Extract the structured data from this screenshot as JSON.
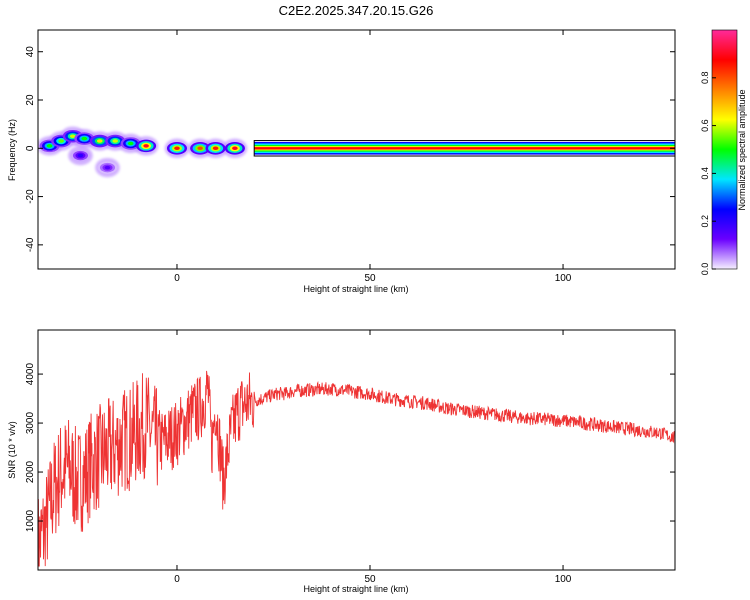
{
  "title": "C2E2.2025.347.20.15.G26",
  "chart_data": [
    {
      "type": "heatmap",
      "xlabel": "Height of straight line (km)",
      "ylabel": "Frequency (Hz)",
      "xlim": [
        -36,
        129
      ],
      "ylim": [
        -50,
        49
      ],
      "xticks": [
        0,
        50,
        100
      ],
      "yticks": [
        40,
        20,
        0,
        -20,
        -40
      ],
      "grid": false,
      "colorbar": {
        "label": "Normalized spectral amplitude",
        "range": [
          0,
          1
        ],
        "ticks": [
          "0.0",
          "0.2",
          "0.4",
          "0.6",
          "0.8"
        ],
        "tick_values": [
          0,
          0.2,
          0.4,
          0.6,
          0.8
        ],
        "colors": [
          "#f6f0ff",
          "#6a00ff",
          "#0000ff",
          "#00e6ff",
          "#00ff00",
          "#ffff00",
          "#ff8000",
          "#ff0000",
          "#ff2a9a"
        ]
      },
      "band": {
        "x_start": 20,
        "x_end": 129,
        "frequency": 0,
        "amplitude": 1.0
      },
      "blobs": [
        {
          "x": -33,
          "f": 1,
          "amp": 0.5
        },
        {
          "x": -30,
          "f": 3,
          "amp": 0.55
        },
        {
          "x": -27,
          "f": 5,
          "amp": 0.6
        },
        {
          "x": -24,
          "f": 4,
          "amp": 0.5
        },
        {
          "x": -20,
          "f": 3,
          "amp": 0.65
        },
        {
          "x": -16,
          "f": 3,
          "amp": 0.6
        },
        {
          "x": -12,
          "f": 2,
          "amp": 0.5
        },
        {
          "x": -8,
          "f": 1,
          "amp": 0.9
        },
        {
          "x": 0,
          "f": 0,
          "amp": 0.85
        },
        {
          "x": 6,
          "f": 0,
          "amp": 0.8
        },
        {
          "x": 10,
          "f": 0,
          "amp": 0.85
        },
        {
          "x": 15,
          "f": 0,
          "amp": 0.9
        },
        {
          "x": -18,
          "f": -8,
          "amp": 0.15
        },
        {
          "x": -25,
          "f": -3,
          "amp": 0.2
        }
      ]
    },
    {
      "type": "line",
      "xlabel": "Height of straight line (km)",
      "ylabel": "SNR (10 * v/v)",
      "xlim": [
        -36,
        129
      ],
      "ylim": [
        0,
        4900
      ],
      "xticks": [
        0,
        50,
        100
      ],
      "yticks": [
        1000,
        2000,
        3000,
        4000
      ],
      "grid": false,
      "series": [
        {
          "color": "#ee3333",
          "x": [
            -36,
            -34,
            -32,
            -30,
            -28,
            -26,
            -24,
            -22,
            -20,
            -18,
            -16,
            -14,
            -12,
            -10,
            -8,
            -6,
            -4,
            -2,
            0,
            2,
            4,
            6,
            8,
            9,
            10,
            12,
            14,
            16,
            18,
            20,
            22,
            24,
            26,
            28,
            30,
            35,
            40,
            45,
            50,
            55,
            60,
            65,
            70,
            75,
            80,
            85,
            90,
            95,
            100,
            105,
            110,
            115,
            120,
            125,
            129
          ],
          "y": [
            500,
            900,
            1600,
            2000,
            2100,
            1800,
            1900,
            2200,
            2300,
            2400,
            2500,
            2650,
            2700,
            2850,
            3000,
            2700,
            2600,
            2700,
            2800,
            3000,
            3200,
            3300,
            3700,
            2500,
            3400,
            1800,
            2800,
            3300,
            3400,
            3450,
            3500,
            3550,
            3600,
            3600,
            3650,
            3680,
            3700,
            3650,
            3600,
            3500,
            3450,
            3400,
            3300,
            3250,
            3200,
            3150,
            3100,
            3080,
            3050,
            3000,
            2950,
            2900,
            2850,
            2800,
            2700
          ]
        }
      ]
    }
  ]
}
